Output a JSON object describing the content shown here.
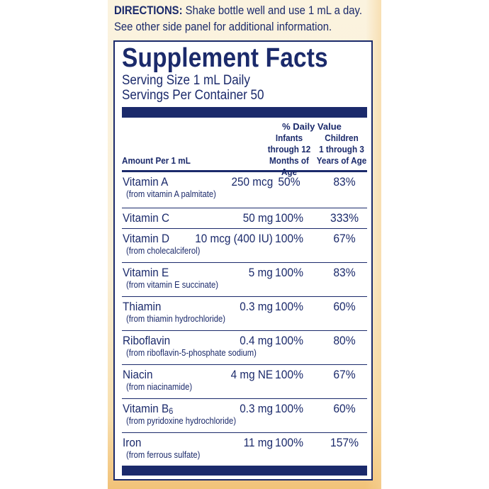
{
  "directions": {
    "label": "DIRECTIONS:",
    "line1": "Shake bottle well and use 1 mL a day.",
    "line2": "See other side panel for additional information."
  },
  "facts": {
    "title": "Supplement Facts",
    "serving_size": "Serving Size 1 mL Daily",
    "servings_per_container": "Servings Per Container 50",
    "header": {
      "daily_value": "% Daily Value",
      "infants_line1": "Infants",
      "infants_line2": "through 12",
      "infants_line3": "Months of Age",
      "children_line1": "Children",
      "children_line2": "1 through 3",
      "children_line3": "Years of Age",
      "amount_per": "Amount Per 1 mL"
    },
    "rows": [
      {
        "name": "Vitamin A",
        "sub": "",
        "source": "(from vitamin A palmitate)",
        "amount": "250 mcg",
        "infants": "50%",
        "children": "83%"
      },
      {
        "name": "Vitamin C",
        "sub": "",
        "source": "",
        "amount": "50 mg",
        "infants": "100%",
        "children": "333%"
      },
      {
        "name": "Vitamin D",
        "sub": "",
        "source": "(from cholecalciferol)",
        "amount": "10 mcg (400 IU)",
        "infants": "100%",
        "children": "67%"
      },
      {
        "name": "Vitamin E",
        "sub": "",
        "source": "(from vitamin E succinate)",
        "amount": "5 mg",
        "infants": "100%",
        "children": "83%"
      },
      {
        "name": "Thiamin",
        "sub": "",
        "source": "(from thiamin hydrochloride)",
        "amount": "0.3 mg",
        "infants": "100%",
        "children": "60%"
      },
      {
        "name": "Riboflavin",
        "sub": "",
        "source": "(from riboflavin-5-phosphate sodium)",
        "amount": "0.4 mg",
        "infants": "100%",
        "children": "80%"
      },
      {
        "name": "Niacin",
        "sub": "",
        "source": "(from niacinamide)",
        "amount": "4 mg NE",
        "infants": "100%",
        "children": "67%"
      },
      {
        "name": "Vitamin B",
        "sub": "6",
        "source": "(from  pyridoxine hydrochloride)",
        "amount": "0.3 mg",
        "infants": "100%",
        "children": "60%"
      },
      {
        "name": "Iron",
        "sub": "",
        "source": "(from ferrous sulfate)",
        "amount": "11 mg",
        "infants": "100%",
        "children": "157%"
      }
    ]
  },
  "colors": {
    "navy": "#1b2a6b",
    "label_cream": "#fbf3df",
    "label_orange": "#f2c278"
  }
}
